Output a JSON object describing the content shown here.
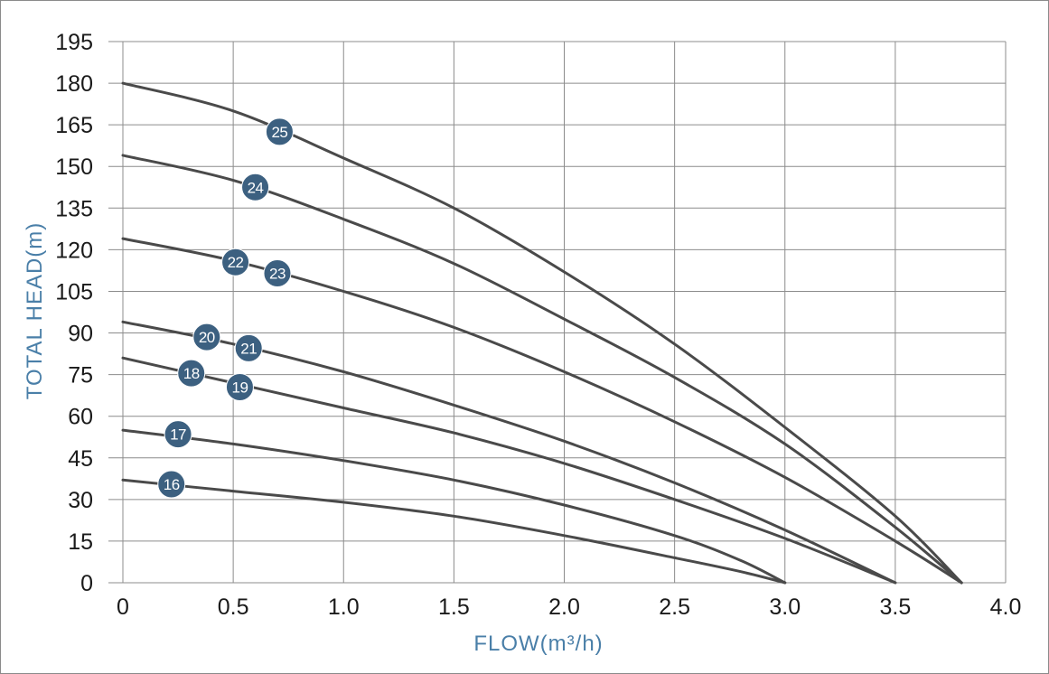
{
  "chart_data": {
    "type": "line",
    "title": "",
    "xlabel": "FLOW(m³/h)",
    "ylabel": "TOTAL HEAD(m)",
    "xlim": [
      0,
      4.0
    ],
    "ylim": [
      0,
      195
    ],
    "x_ticks": [
      "0",
      "0.5",
      "1.0",
      "1.5",
      "2.0",
      "2.5",
      "3.0",
      "3.5",
      "4.0"
    ],
    "y_ticks": [
      "0",
      "15",
      "30",
      "45",
      "60",
      "75",
      "90",
      "105",
      "120",
      "135",
      "150",
      "165",
      "180",
      "195"
    ],
    "grid": true,
    "legend": "none",
    "colors": {
      "curve": "#4a4a4a",
      "badge": "#3c6080",
      "grid": "#8c8c8c",
      "axis_title": "#4a7fa8"
    },
    "series": [
      {
        "name": "16",
        "points": [
          [
            0,
            37
          ],
          [
            0.5,
            33
          ],
          [
            1.0,
            29
          ],
          [
            1.5,
            24
          ],
          [
            2.0,
            17
          ],
          [
            2.5,
            9
          ],
          [
            2.8,
            4
          ],
          [
            3.0,
            0
          ]
        ]
      },
      {
        "name": "17",
        "points": [
          [
            0,
            55
          ],
          [
            0.5,
            50
          ],
          [
            1.0,
            44
          ],
          [
            1.5,
            37
          ],
          [
            2.0,
            28
          ],
          [
            2.5,
            17
          ],
          [
            2.8,
            8
          ],
          [
            3.0,
            0
          ]
        ]
      },
      {
        "name": "18/19",
        "points": [
          [
            0,
            81
          ],
          [
            0.5,
            72
          ],
          [
            1.0,
            63
          ],
          [
            1.5,
            54
          ],
          [
            2.0,
            43
          ],
          [
            2.5,
            30
          ],
          [
            3.0,
            16
          ],
          [
            3.5,
            0
          ]
        ]
      },
      {
        "name": "20/21",
        "points": [
          [
            0,
            94
          ],
          [
            0.5,
            86
          ],
          [
            1.0,
            76
          ],
          [
            1.5,
            64
          ],
          [
            2.0,
            51
          ],
          [
            2.5,
            36
          ],
          [
            3.0,
            19
          ],
          [
            3.5,
            0
          ]
        ]
      },
      {
        "name": "22/23",
        "points": [
          [
            0,
            124
          ],
          [
            0.5,
            116
          ],
          [
            1.0,
            105
          ],
          [
            1.5,
            92
          ],
          [
            2.0,
            76
          ],
          [
            2.5,
            58
          ],
          [
            3.0,
            38
          ],
          [
            3.5,
            15
          ],
          [
            3.8,
            0
          ]
        ]
      },
      {
        "name": "24",
        "points": [
          [
            0,
            154
          ],
          [
            0.5,
            145
          ],
          [
            1.0,
            131
          ],
          [
            1.5,
            115
          ],
          [
            2.0,
            95
          ],
          [
            2.5,
            74
          ],
          [
            3.0,
            50
          ],
          [
            3.5,
            20
          ],
          [
            3.8,
            0
          ]
        ]
      },
      {
        "name": "25",
        "points": [
          [
            0,
            180
          ],
          [
            0.5,
            170
          ],
          [
            1.0,
            153
          ],
          [
            1.5,
            135
          ],
          [
            2.0,
            112
          ],
          [
            2.5,
            86
          ],
          [
            3.0,
            56
          ],
          [
            3.5,
            24
          ],
          [
            3.8,
            0
          ]
        ]
      }
    ],
    "annotations": [
      {
        "label": "25",
        "x": 0.71,
        "y": 162.5
      },
      {
        "label": "24",
        "x": 0.6,
        "y": 142.5
      },
      {
        "label": "22",
        "x": 0.51,
        "y": 115.5
      },
      {
        "label": "23",
        "x": 0.7,
        "y": 111.5
      },
      {
        "label": "20",
        "x": 0.38,
        "y": 88.5
      },
      {
        "label": "21",
        "x": 0.57,
        "y": 84.5
      },
      {
        "label": "18",
        "x": 0.31,
        "y": 75.5
      },
      {
        "label": "19",
        "x": 0.53,
        "y": 70.5
      },
      {
        "label": "17",
        "x": 0.25,
        "y": 53.5
      },
      {
        "label": "16",
        "x": 0.22,
        "y": 35.5
      }
    ]
  }
}
